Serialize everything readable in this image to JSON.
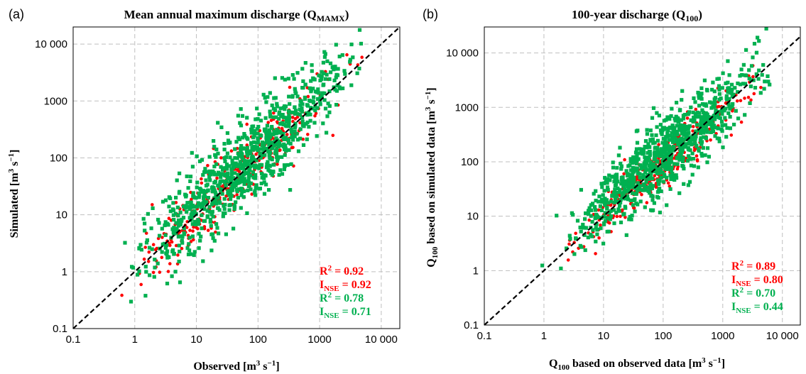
{
  "chart_data": [
    {
      "panel": "(a)",
      "type": "scatter",
      "title": "Mean annual maximum discharge (Q",
      "title_sub": "MAMX",
      "title_end": ")",
      "xlabel": "Observed [m",
      "xlabel_sup": "3",
      "xlabel_end": " s",
      "xlabel_sup2": "−1",
      "xlabel_close": "]",
      "ylabel": "Simulated [m",
      "ylabel_sup": "3",
      "ylabel_end": " s",
      "ylabel_sup2": "−1",
      "ylabel_close": "]",
      "xscale": "log",
      "yscale": "log",
      "xlim": [
        0.1,
        20000
      ],
      "ylim": [
        0.1,
        20000
      ],
      "xticks": [
        "0.1",
        "1",
        "10",
        "100",
        "1000",
        "10 000"
      ],
      "yticks": [
        "0.1",
        "1",
        "10",
        "100",
        "1000",
        "10 000"
      ],
      "grid": true,
      "one_to_one_line": true,
      "stats": [
        {
          "label": "R",
          "sup": "2",
          "sub": "",
          "value": " = 0.92",
          "color": "#ff0000"
        },
        {
          "label": "I",
          "sup": "",
          "sub": "NSE",
          "value": " = 0.92",
          "color": "#ff0000"
        },
        {
          "label": "R",
          "sup": "2",
          "sub": "",
          "value": " = 0.78",
          "color": "#00b050"
        },
        {
          "label": "I",
          "sup": "",
          "sub": "NSE",
          "value": " = 0.71",
          "color": "#00b050"
        }
      ],
      "series": [
        {
          "marker": "circle",
          "color": "#ff0000",
          "count": 320,
          "x_range": [
            0.25,
            12000
          ],
          "log_scatter": 0.28,
          "slope": 1.0,
          "offset": 0.02
        },
        {
          "marker": "square",
          "color": "#00b050",
          "count": 900,
          "x_range": [
            0.27,
            12000
          ],
          "log_scatter": 0.38,
          "slope": 0.97,
          "offset": 0.15
        }
      ]
    },
    {
      "panel": "(b)",
      "type": "scatter",
      "title": "100-year discharge (Q",
      "title_sub": "100",
      "title_end": ")",
      "xlabel": "Q",
      "xlabel_sub": "100",
      "xlabel_mid": " based on observed data [m",
      "xlabel_sup": "3",
      "xlabel_end": " s",
      "xlabel_sup2": "−1",
      "xlabel_close": "]",
      "ylabel": "Q",
      "ylabel_sub": "100",
      "ylabel_mid": " based on simulated data [m",
      "ylabel_sup": "3",
      "ylabel_end": " s",
      "ylabel_sup2": "−1",
      "ylabel_close": "]",
      "xscale": "log",
      "yscale": "log",
      "xlim": [
        0.1,
        20000
      ],
      "ylim": [
        0.1,
        30000
      ],
      "xticks": [
        "0.1",
        "1",
        "10",
        "100",
        "1000",
        "10 000"
      ],
      "yticks": [
        "0.1",
        "1",
        "10",
        "100",
        "1000",
        "10 000"
      ],
      "grid": true,
      "one_to_one_line": true,
      "stats": [
        {
          "label": "R",
          "sup": "2",
          "sub": "",
          "value": " = 0.89",
          "color": "#ff0000"
        },
        {
          "label": "I",
          "sup": "",
          "sub": "NSE",
          "value": " = 0.80",
          "color": "#ff0000"
        },
        {
          "label": "R",
          "sup": "2",
          "sub": "",
          "value": " = 0.70",
          "color": "#00b050"
        },
        {
          "label": "I",
          "sup": "",
          "sub": "NSE",
          "value": " = 0.44",
          "color": "#00b050"
        }
      ],
      "series": [
        {
          "marker": "circle",
          "color": "#ff0000",
          "count": 300,
          "x_range": [
            0.65,
            14000
          ],
          "log_scatter": 0.22,
          "slope": 0.95,
          "offset": 0.05
        },
        {
          "marker": "square",
          "color": "#00b050",
          "count": 900,
          "x_range": [
            0.9,
            14000
          ],
          "log_scatter": 0.32,
          "slope": 0.9,
          "offset": 0.32
        }
      ]
    }
  ]
}
